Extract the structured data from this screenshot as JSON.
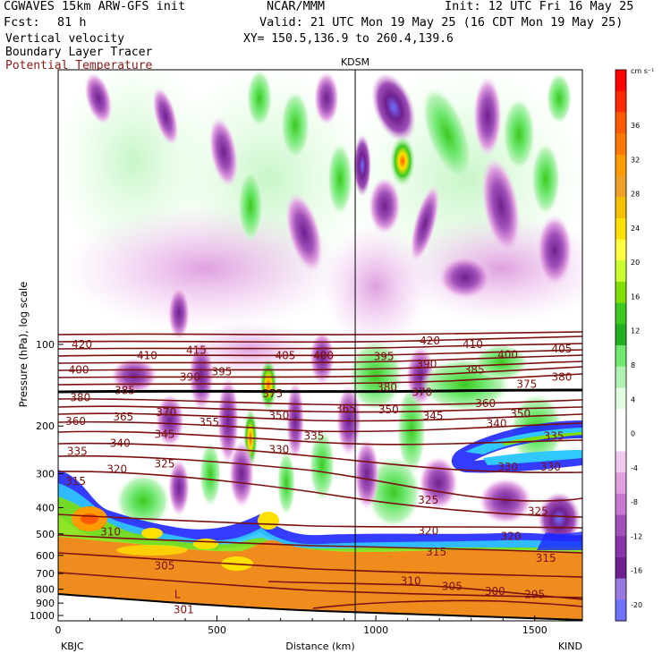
{
  "header": {
    "model": "CGWAVES 15km ARW-GFS init",
    "org": "NCAR/MMM",
    "init": "Init: 12 UTC Fri 16 May 25",
    "fcst_label": "Fcst:",
    "fcst_value": "81 h",
    "valid": "Valid: 21 UTC Mon 19 May 25 (16 CDT Mon 19 May 25)",
    "field1": "Vertical velocity",
    "xy": "XY= 150.5,136.9 to 260.4,139.6",
    "field2": "Boundary Layer Tracer",
    "field3": "Potential Temperature"
  },
  "colors": {
    "contour": "#7a1010",
    "terrain": "#f08c1e",
    "field3_text": "#8b1a1a"
  },
  "chart_data": {
    "type": "heatmap",
    "title": "Vertical velocity",
    "station_marker": {
      "label": "KDSM",
      "x_km": 935
    },
    "xaxis": {
      "label": "Distance (km)",
      "range": [
        0,
        1650
      ],
      "ticks": [
        0,
        500,
        1000,
        1500
      ],
      "tick_labels": [
        "0",
        "500",
        "1000",
        "1500"
      ],
      "left_label": "KBJC",
      "right_label": "KIND"
    },
    "yaxis": {
      "label": "Pressure (hPa), log scale",
      "scale": "log",
      "ticks": [
        100,
        200,
        300,
        400,
        500,
        600,
        700,
        800,
        900,
        1000
      ],
      "tick_labels": [
        "100",
        "200",
        "300",
        "400",
        "500",
        "600",
        "700",
        "800",
        "900",
        "1000"
      ]
    },
    "colorbar": {
      "unit": "cm s⁻¹",
      "labels": [
        "36",
        "32",
        "28",
        "24",
        "20",
        "16",
        "12",
        "8",
        "4",
        "0",
        "-4",
        "-8",
        "-12",
        "-16",
        "-20"
      ],
      "colors": [
        "#ff0000",
        "#ff2a00",
        "#ff5a00",
        "#ff7800",
        "#ff9a00",
        "#f0a028",
        "#f5c000",
        "#ffe000",
        "#ffff40",
        "#c8ff30",
        "#7fe000",
        "#3cc820",
        "#20b020",
        "#70e870",
        "#b0f0b0",
        "#e0ffe0",
        "#ffffff",
        "#ffffff",
        "#f0c8f0",
        "#e0a0e0",
        "#c878d0",
        "#a050b8",
        "#8a32a8",
        "#6e2090",
        "#9878e0",
        "#7070ff"
      ]
    },
    "isentropes": [
      {
        "value": "420",
        "x_km": 75,
        "p": 100
      },
      {
        "value": "410",
        "x_km": 280,
        "p": 110
      },
      {
        "value": "415",
        "x_km": 435,
        "p": 105
      },
      {
        "value": "405",
        "x_km": 715,
        "p": 110
      },
      {
        "value": "400",
        "x_km": 835,
        "p": 110
      },
      {
        "value": "420",
        "x_km": 1170,
        "p": 97
      },
      {
        "value": "410",
        "x_km": 1305,
        "p": 100
      },
      {
        "value": "405",
        "x_km": 1585,
        "p": 104
      },
      {
        "value": "400",
        "x_km": 1415,
        "p": 109
      },
      {
        "value": "395",
        "x_km": 1025,
        "p": 111
      },
      {
        "value": "390",
        "x_km": 1160,
        "p": 118
      },
      {
        "value": "385",
        "x_km": 1310,
        "p": 124
      },
      {
        "value": "380",
        "x_km": 1585,
        "p": 132
      },
      {
        "value": "375",
        "x_km": 1475,
        "p": 140
      },
      {
        "value": "400",
        "x_km": 65,
        "p": 124
      },
      {
        "value": "390",
        "x_km": 415,
        "p": 132
      },
      {
        "value": "395",
        "x_km": 515,
        "p": 126
      },
      {
        "value": "385",
        "x_km": 210,
        "p": 148
      },
      {
        "value": "380",
        "x_km": 70,
        "p": 157
      },
      {
        "value": "375",
        "x_km": 675,
        "p": 152
      },
      {
        "value": "380",
        "x_km": 1035,
        "p": 144
      },
      {
        "value": "370",
        "x_km": 1145,
        "p": 150
      },
      {
        "value": "360",
        "x_km": 1345,
        "p": 165
      },
      {
        "value": "370",
        "x_km": 340,
        "p": 178
      },
      {
        "value": "365",
        "x_km": 205,
        "p": 185
      },
      {
        "value": "355",
        "x_km": 475,
        "p": 194
      },
      {
        "value": "350",
        "x_km": 695,
        "p": 183
      },
      {
        "value": "365",
        "x_km": 905,
        "p": 173
      },
      {
        "value": "350",
        "x_km": 1040,
        "p": 174
      },
      {
        "value": "345",
        "x_km": 1180,
        "p": 184
      },
      {
        "value": "350",
        "x_km": 1455,
        "p": 180
      },
      {
        "value": "340",
        "x_km": 1380,
        "p": 196
      },
      {
        "value": "360",
        "x_km": 55,
        "p": 192
      },
      {
        "value": "345",
        "x_km": 335,
        "p": 215
      },
      {
        "value": "340",
        "x_km": 195,
        "p": 232
      },
      {
        "value": "335",
        "x_km": 60,
        "p": 248
      },
      {
        "value": "335",
        "x_km": 805,
        "p": 218
      },
      {
        "value": "330",
        "x_km": 695,
        "p": 244
      },
      {
        "value": "325",
        "x_km": 335,
        "p": 276
      },
      {
        "value": "320",
        "x_km": 185,
        "p": 289
      },
      {
        "value": "335",
        "x_km": 1560,
        "p": 218
      },
      {
        "value": "330",
        "x_km": 1415,
        "p": 283
      },
      {
        "value": "330",
        "x_km": 1550,
        "p": 283
      },
      {
        "value": "315",
        "x_km": 55,
        "p": 320
      },
      {
        "value": "325",
        "x_km": 1165,
        "p": 375
      },
      {
        "value": "325",
        "x_km": 1510,
        "p": 412
      },
      {
        "value": "320",
        "x_km": 1165,
        "p": 488
      },
      {
        "value": "320",
        "x_km": 1425,
        "p": 510
      },
      {
        "value": "310",
        "x_km": 165,
        "p": 492
      },
      {
        "value": "315",
        "x_km": 1190,
        "p": 583
      },
      {
        "value": "315",
        "x_km": 1535,
        "p": 615
      },
      {
        "value": "305",
        "x_km": 335,
        "p": 655
      },
      {
        "value": "310",
        "x_km": 1110,
        "p": 745
      },
      {
        "value": "305",
        "x_km": 1240,
        "p": 780
      },
      {
        "value": "300",
        "x_km": 1375,
        "p": 815
      },
      {
        "value": "295",
        "x_km": 1500,
        "p": 838
      },
      {
        "value": "301",
        "x_km": 395,
        "p": 950
      }
    ],
    "L_label": {
      "value": "L",
      "x_km": 375,
      "p": 835
    }
  }
}
